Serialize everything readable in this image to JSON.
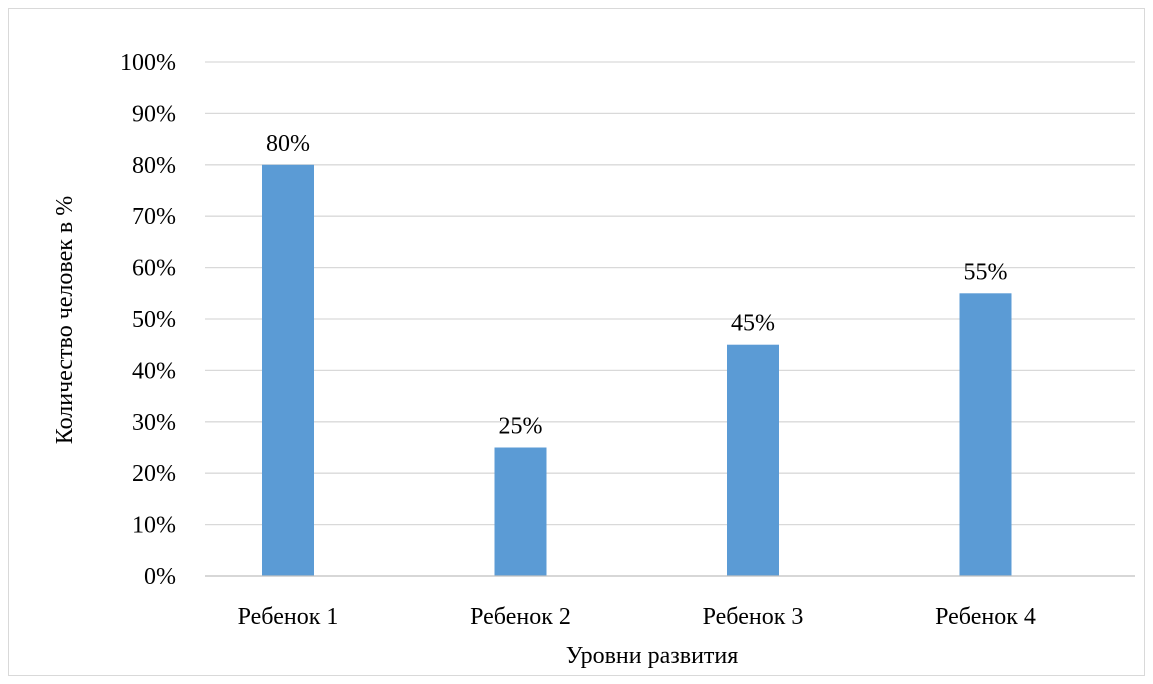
{
  "chart_data": {
    "type": "bar",
    "title": "",
    "xlabel": "Уровни развития",
    "ylabel": "Количество человек в %",
    "categories": [
      "Ребенок 1",
      "Ребенок 2",
      "Ребенок 3",
      "Ребенок 4"
    ],
    "values": [
      80,
      25,
      45,
      55
    ],
    "data_labels": [
      "80%",
      "25%",
      "45%",
      "55%"
    ],
    "ylim": [
      0,
      100
    ],
    "yticks": [
      0,
      10,
      20,
      30,
      40,
      50,
      60,
      70,
      80,
      90,
      100
    ],
    "ytick_labels": [
      "0%",
      "10%",
      "20%",
      "30%",
      "40%",
      "50%",
      "60%",
      "70%",
      "80%",
      "90%",
      "100%"
    ],
    "grid": true,
    "legend": "none",
    "bar_color": "#5b9bd5"
  }
}
